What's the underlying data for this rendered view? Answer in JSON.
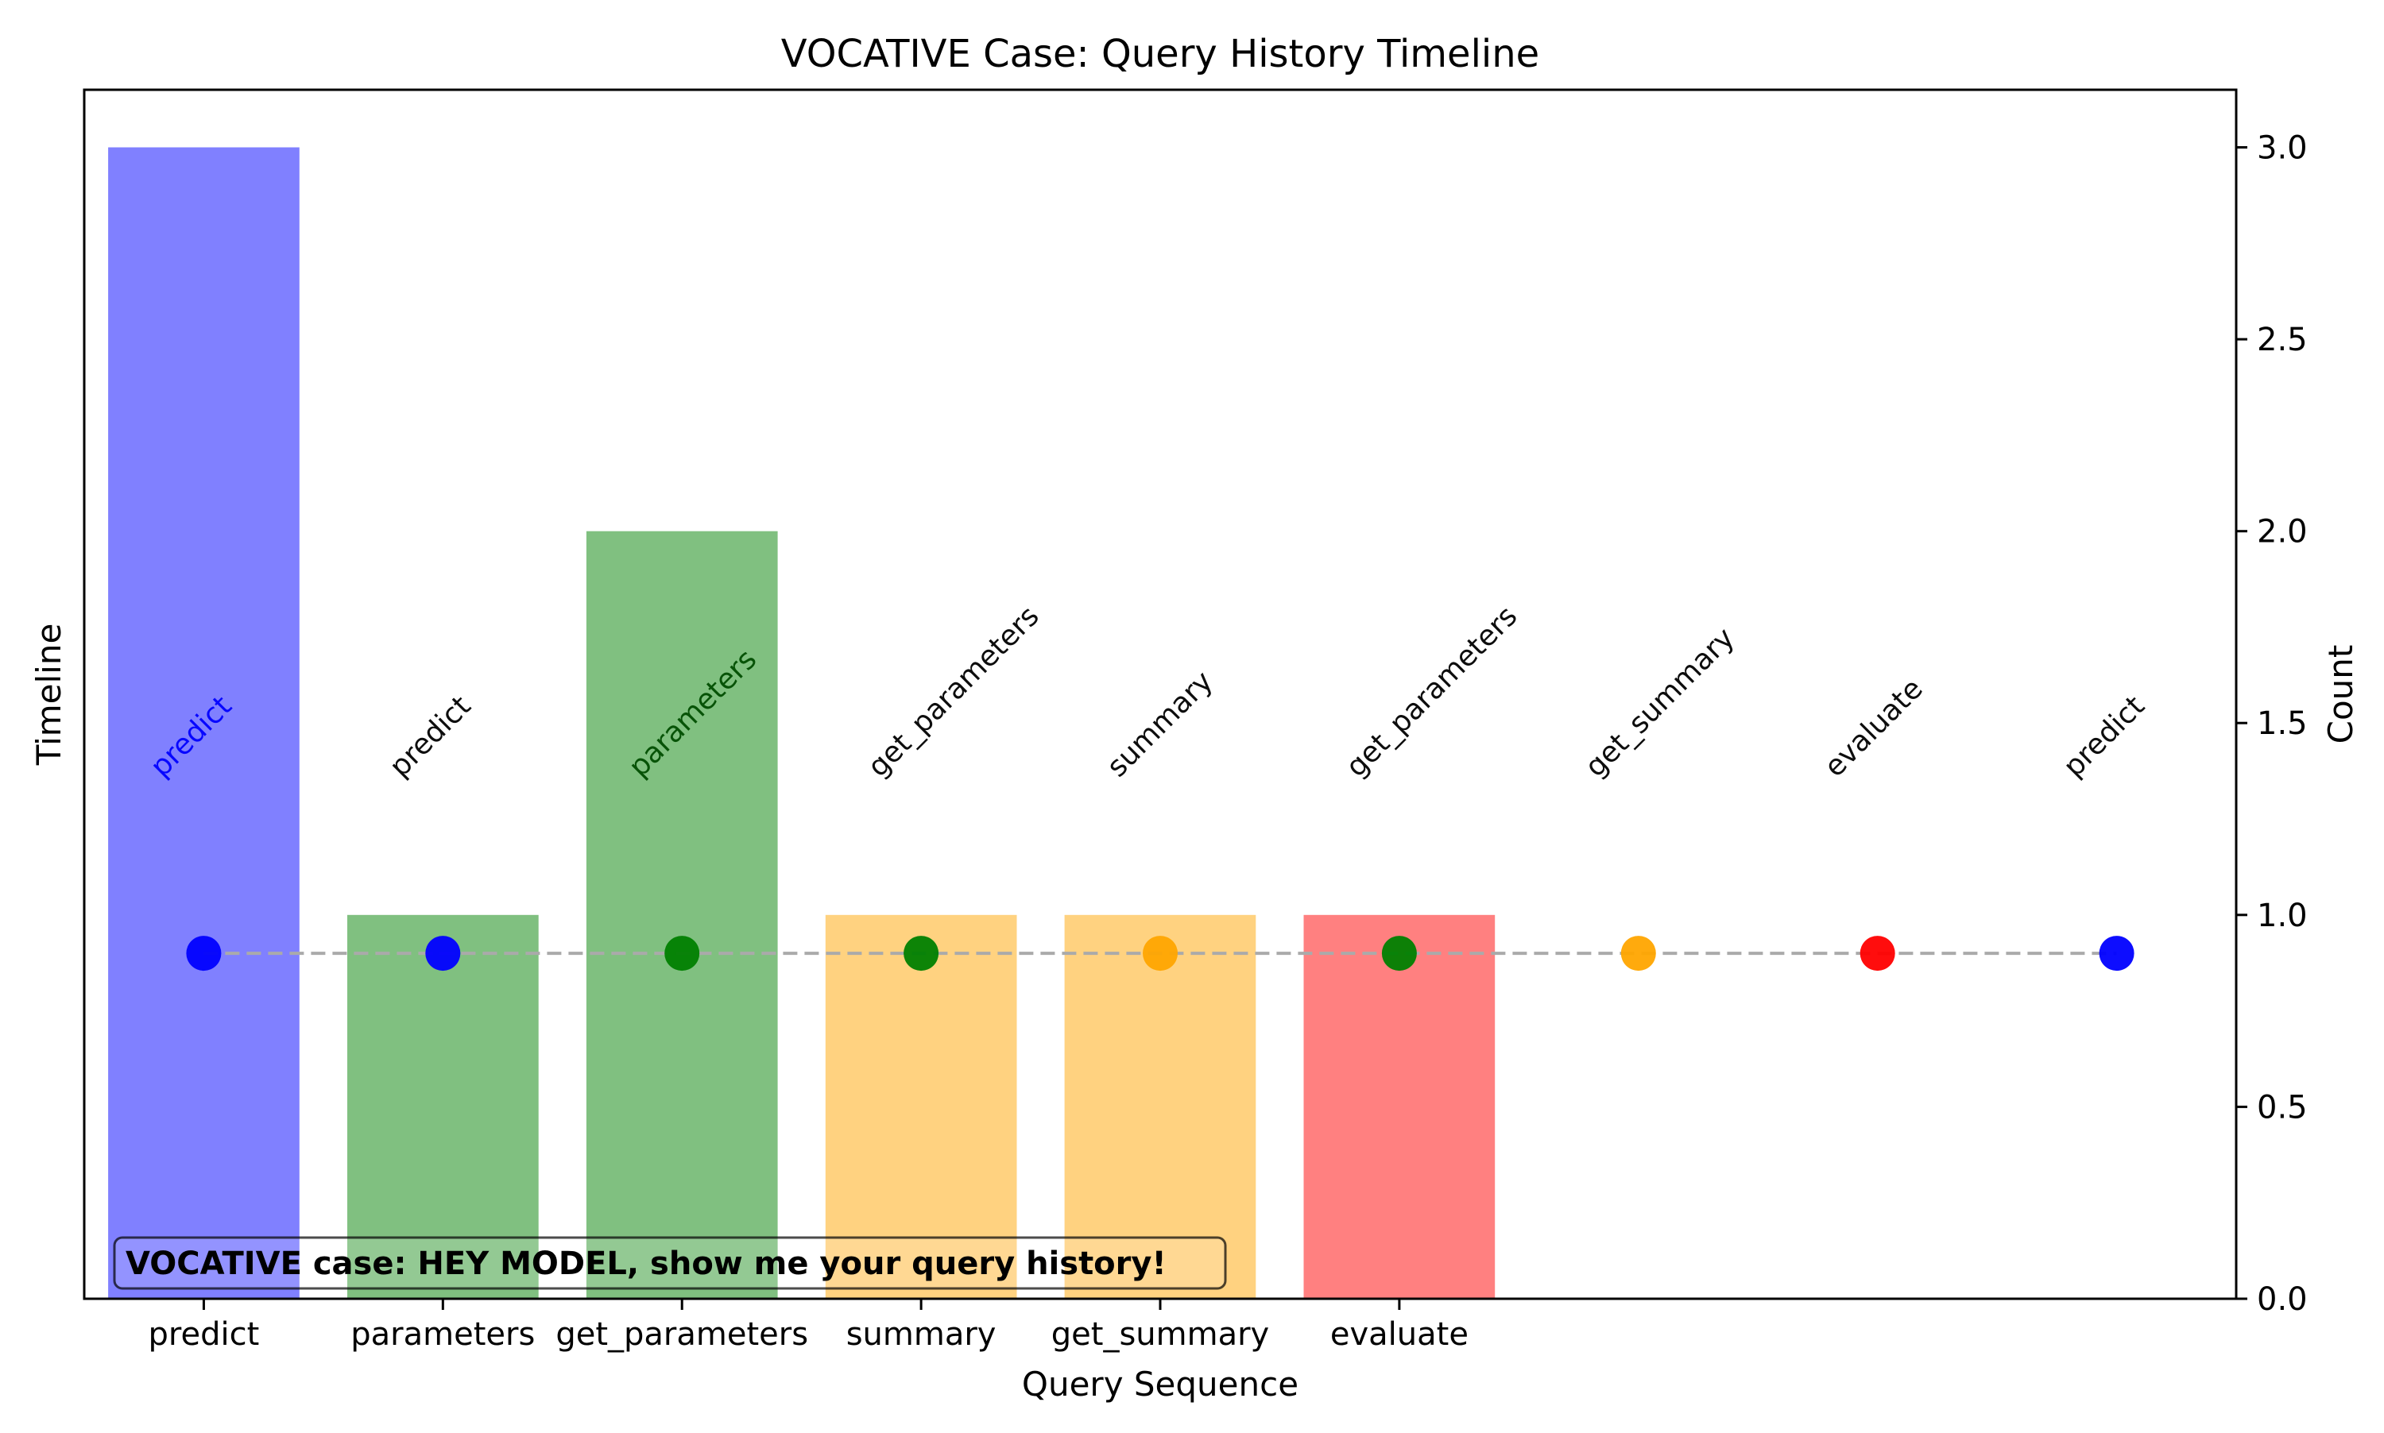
{
  "chart_data": {
    "type": "bar",
    "title": "VOCATIVE Case: Query History Timeline",
    "xlabel": "Query Sequence",
    "ylabel_left": "Timeline",
    "ylabel_right": "Count",
    "ylim": [
      0,
      3.15
    ],
    "y_ticks": [
      "0.0",
      "0.5",
      "1.0",
      "1.5",
      "2.0",
      "2.5",
      "3.0"
    ],
    "grid": false,
    "categories": [
      "predict",
      "parameters",
      "get_parameters",
      "summary",
      "get_summary",
      "evaluate"
    ],
    "bars": [
      {
        "label": "predict",
        "value": 3,
        "color": "#8080ff"
      },
      {
        "label": "parameters",
        "value": 1,
        "color": "#80c080"
      },
      {
        "label": "get_parameters",
        "value": 2,
        "color": "#80c080"
      },
      {
        "label": "summary",
        "value": 1,
        "color": "#ffd280"
      },
      {
        "label": "get_summary",
        "value": 1,
        "color": "#ffd280"
      },
      {
        "label": "evaluate",
        "value": 1,
        "color": "#ff8080"
      }
    ],
    "timeline": {
      "y": 0.9,
      "line_color": "#aaaaaa",
      "points": [
        {
          "label": "predict",
          "color": "#0000ff"
        },
        {
          "label": "predict",
          "color": "#0000ff"
        },
        {
          "label": "parameters",
          "color": "#008000"
        },
        {
          "label": "get_parameters",
          "color": "#008000"
        },
        {
          "label": "summary",
          "color": "#ffa500"
        },
        {
          "label": "get_parameters",
          "color": "#008000"
        },
        {
          "label": "get_summary",
          "color": "#ffa500"
        },
        {
          "label": "evaluate",
          "color": "#ff0000"
        },
        {
          "label": "predict",
          "color": "#0000ff"
        }
      ]
    },
    "annotation": "VOCATIVE case: HEY MODEL, show me your query history!"
  }
}
